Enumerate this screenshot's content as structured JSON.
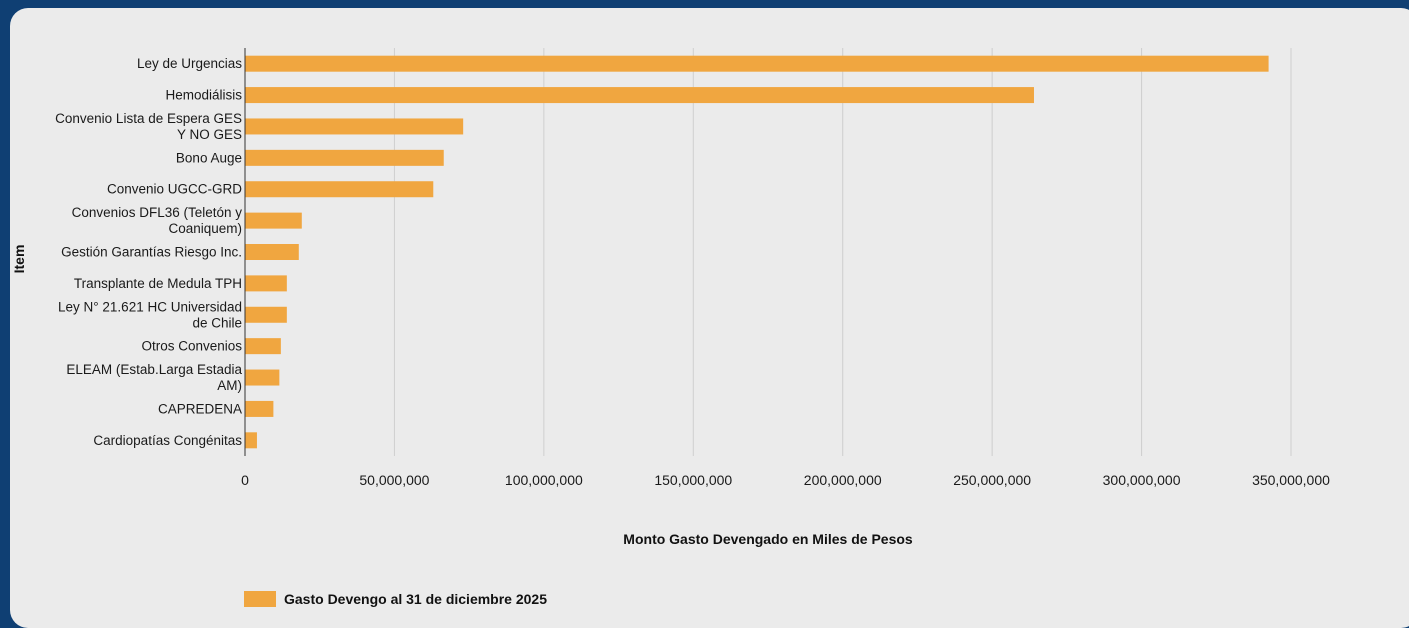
{
  "chart_data": {
    "type": "bar",
    "orientation": "horizontal",
    "categories": [
      "Ley de Urgencias",
      "Hemodiálisis",
      "Convenio Lista de Espera GES Y NO GES",
      "Bono Auge",
      "Convenio UGCC-GRD",
      "Convenios DFL36 (Teletón y Coaniquem)",
      "Gestión Garantías Riesgo Inc.",
      "Transplante de Medula TPH",
      "Ley N° 21.621 HC Universidad de Chile",
      "Otros Convenios",
      "ELEAM (Estab.Larga Estadia AM)",
      "CAPREDENA",
      "Cardiopatías Congénitas"
    ],
    "category_lines": [
      [
        "Ley de Urgencias"
      ],
      [
        "Hemodiálisis"
      ],
      [
        "Convenio Lista de Espera GES",
        "Y NO GES"
      ],
      [
        "Bono Auge"
      ],
      [
        "Convenio UGCC-GRD"
      ],
      [
        "Convenios DFL36 (Teletón y",
        "Coaniquem)"
      ],
      [
        "Gestión Garantías Riesgo Inc."
      ],
      [
        "Transplante de Medula TPH"
      ],
      [
        "Ley N° 21.621 HC Universidad",
        "de Chile"
      ],
      [
        "Otros Convenios"
      ],
      [
        "ELEAM (Estab.Larga Estadia",
        "AM)"
      ],
      [
        "CAPREDENA"
      ],
      [
        "Cardiopatías Congénitas"
      ]
    ],
    "series": [
      {
        "name": "Gasto Devengo al 31 de diciembre 2025",
        "color": "#f0a640",
        "values": [
          342500000,
          264000000,
          73000000,
          66500000,
          63000000,
          19000000,
          18000000,
          14000000,
          14000000,
          12000000,
          11500000,
          9500000,
          4000000
        ]
      }
    ],
    "xlim": [
      0,
      350000000
    ],
    "xticks": [
      0,
      50000000,
      100000000,
      150000000,
      200000000,
      250000000,
      300000000,
      350000000
    ],
    "xtick_labels": [
      "0",
      "50,000,000",
      "100,000,000",
      "150,000,000",
      "200,000,000",
      "250,000,000",
      "300,000,000",
      "350,000,000"
    ],
    "xlabel": "Monto Gasto Devengado en Miles de Pesos",
    "ylabel": "Item",
    "grid": "vertical",
    "legend_position": "bottom-left"
  }
}
